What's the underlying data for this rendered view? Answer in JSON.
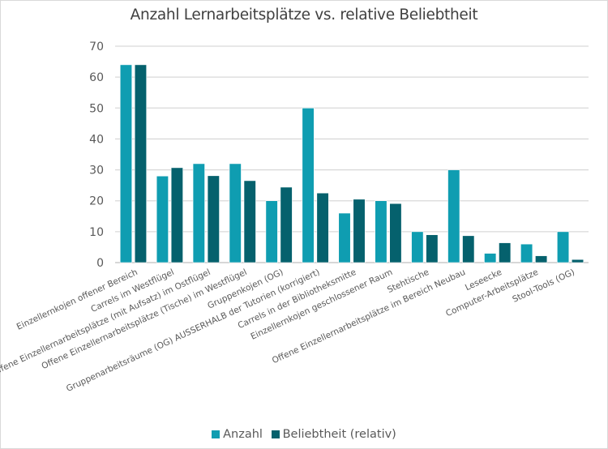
{
  "chart_data": {
    "type": "bar",
    "title": "Anzahl Lernarbeitsplätze vs. relative Beliebtheit",
    "xlabel": "",
    "ylabel": "",
    "ylim": [
      0,
      70
    ],
    "yticks": [
      0,
      10,
      20,
      30,
      40,
      50,
      60,
      70
    ],
    "grid": true,
    "legend_position": "bottom",
    "categories": [
      "Einzellernkojen offener Bereich",
      "Carrels im Westflügel",
      "Offene Einzellernarbeitsplätze (mit Aufsatz) im Ostflügel",
      "Offene Einzellernarbeitsplätze (Tische) im Westflügel",
      "Gruppenkojen (OG)",
      "Gruppenarbeitsräume (OG) AUSSERHALB der Tutorien (korrigiert)",
      "Carrels in der Bibliotheksmitte",
      "Einzellernkojen geschlossener Raum",
      "Stehtische",
      "Offene Einzellernarbeitsplätze im Bereich Neubau",
      "Leseecke",
      "Computer-Arbeitsplätze",
      "Stool-Tools (OG)"
    ],
    "series": [
      {
        "name": "Anzahl",
        "color": "#0f9db1",
        "values": [
          64,
          28,
          32,
          32,
          20,
          50,
          16,
          20,
          10,
          30,
          3,
          6,
          10
        ]
      },
      {
        "name": "Beliebtheit (relativ)",
        "color": "#05616d",
        "values": [
          64,
          30.7,
          28.1,
          26.5,
          24.4,
          22.5,
          20.5,
          19.1,
          9.0,
          8.7,
          6.4,
          2.2,
          1.0
        ]
      }
    ]
  }
}
